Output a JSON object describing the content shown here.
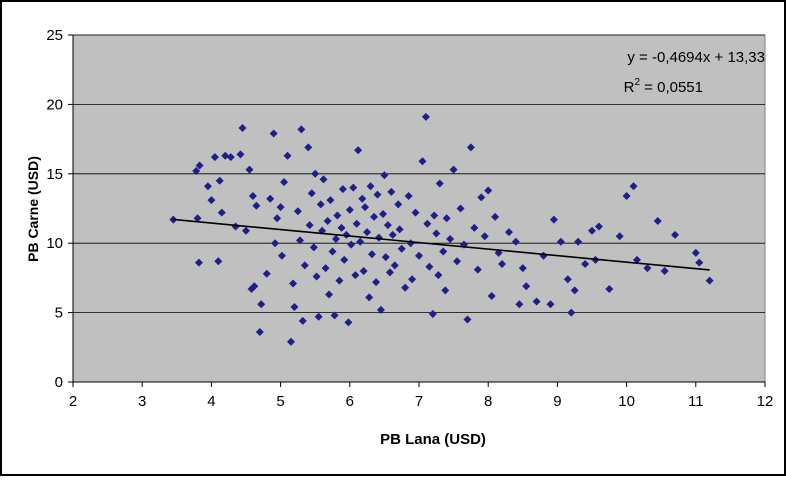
{
  "chart_data": {
    "type": "scatter",
    "xlabel": "PB Lana (USD)",
    "ylabel": "PB Carne (USD)",
    "xlim": [
      2,
      12
    ],
    "ylim": [
      0,
      25
    ],
    "x_ticks": [
      "2",
      "3",
      "4",
      "5",
      "6",
      "7",
      "8",
      "9",
      "10",
      "11",
      "12"
    ],
    "y_ticks": [
      "0",
      "5",
      "10",
      "15",
      "20",
      "25"
    ],
    "grid": "horizontal",
    "background": "#c0c0c0",
    "marker_color": "#1f1f8a",
    "trendline": {
      "equation": "y = -0,4694x + 13,33",
      "r2_prefix": "R",
      "r2_sup": "2",
      "r2_suffix": " = 0,0551",
      "slope": -0.4694,
      "intercept": 13.33,
      "x_range": [
        3.45,
        11.2
      ],
      "color": "#000000"
    },
    "series": [
      {
        "points": [
          [
            3.45,
            11.7
          ],
          [
            3.8,
            11.8
          ],
          [
            3.78,
            15.2
          ],
          [
            3.83,
            15.6
          ],
          [
            3.82,
            8.6
          ],
          [
            4.0,
            13.1
          ],
          [
            3.95,
            14.1
          ],
          [
            4.05,
            16.2
          ],
          [
            4.12,
            14.5
          ],
          [
            4.2,
            16.3
          ],
          [
            4.28,
            16.2
          ],
          [
            4.15,
            12.2
          ],
          [
            4.1,
            8.7
          ],
          [
            4.35,
            11.2
          ],
          [
            4.42,
            16.4
          ],
          [
            4.45,
            18.3
          ],
          [
            4.55,
            15.3
          ],
          [
            4.6,
            13.4
          ],
          [
            4.65,
            12.7
          ],
          [
            4.5,
            10.9
          ],
          [
            4.58,
            6.7
          ],
          [
            4.62,
            6.9
          ],
          [
            4.7,
            3.6
          ],
          [
            4.72,
            5.6
          ],
          [
            4.8,
            7.8
          ],
          [
            4.85,
            13.2
          ],
          [
            4.9,
            17.9
          ],
          [
            4.92,
            10.0
          ],
          [
            4.95,
            11.8
          ],
          [
            5.0,
            12.6
          ],
          [
            5.05,
            14.4
          ],
          [
            5.02,
            9.1
          ],
          [
            5.1,
            16.3
          ],
          [
            5.15,
            2.9
          ],
          [
            5.18,
            7.1
          ],
          [
            5.2,
            5.4
          ],
          [
            5.25,
            12.3
          ],
          [
            5.28,
            10.2
          ],
          [
            5.3,
            18.2
          ],
          [
            5.32,
            4.4
          ],
          [
            5.35,
            8.4
          ],
          [
            5.4,
            16.9
          ],
          [
            5.42,
            11.3
          ],
          [
            5.45,
            13.6
          ],
          [
            5.48,
            9.7
          ],
          [
            5.5,
            15.0
          ],
          [
            5.52,
            7.6
          ],
          [
            5.55,
            4.7
          ],
          [
            5.58,
            12.8
          ],
          [
            5.6,
            10.9
          ],
          [
            5.62,
            14.6
          ],
          [
            5.65,
            8.2
          ],
          [
            5.68,
            11.6
          ],
          [
            5.7,
            6.3
          ],
          [
            5.72,
            13.1
          ],
          [
            5.75,
            9.4
          ],
          [
            5.78,
            4.8
          ],
          [
            5.8,
            10.3
          ],
          [
            5.82,
            12.0
          ],
          [
            5.85,
            7.3
          ],
          [
            5.88,
            11.1
          ],
          [
            5.9,
            13.9
          ],
          [
            5.92,
            8.8
          ],
          [
            5.95,
            10.6
          ],
          [
            5.98,
            4.3
          ],
          [
            6.0,
            12.4
          ],
          [
            6.02,
            9.9
          ],
          [
            6.05,
            14.0
          ],
          [
            6.08,
            7.7
          ],
          [
            6.1,
            11.4
          ],
          [
            6.12,
            16.7
          ],
          [
            6.15,
            10.1
          ],
          [
            6.18,
            13.2
          ],
          [
            6.2,
            8.0
          ],
          [
            6.22,
            12.6
          ],
          [
            6.25,
            10.8
          ],
          [
            6.28,
            6.1
          ],
          [
            6.3,
            14.1
          ],
          [
            6.32,
            9.2
          ],
          [
            6.35,
            11.9
          ],
          [
            6.38,
            7.2
          ],
          [
            6.4,
            13.5
          ],
          [
            6.42,
            10.4
          ],
          [
            6.45,
            5.2
          ],
          [
            6.48,
            12.1
          ],
          [
            6.5,
            14.9
          ],
          [
            6.52,
            9.0
          ],
          [
            6.55,
            11.3
          ],
          [
            6.58,
            7.9
          ],
          [
            6.6,
            13.7
          ],
          [
            6.62,
            10.6
          ],
          [
            6.65,
            8.4
          ],
          [
            6.7,
            12.8
          ],
          [
            6.72,
            11.0
          ],
          [
            6.75,
            9.6
          ],
          [
            6.8,
            6.8
          ],
          [
            6.85,
            13.4
          ],
          [
            6.88,
            10.0
          ],
          [
            6.9,
            7.4
          ],
          [
            6.95,
            12.2
          ],
          [
            7.0,
            9.1
          ],
          [
            7.05,
            15.9
          ],
          [
            7.1,
            19.1
          ],
          [
            7.12,
            11.4
          ],
          [
            7.15,
            8.3
          ],
          [
            7.2,
            4.9
          ],
          [
            7.22,
            12.0
          ],
          [
            7.25,
            10.7
          ],
          [
            7.28,
            7.7
          ],
          [
            7.3,
            14.3
          ],
          [
            7.35,
            9.4
          ],
          [
            7.38,
            6.6
          ],
          [
            7.4,
            11.8
          ],
          [
            7.45,
            10.3
          ],
          [
            7.5,
            15.3
          ],
          [
            7.55,
            8.7
          ],
          [
            7.6,
            12.5
          ],
          [
            7.65,
            9.9
          ],
          [
            7.7,
            4.5
          ],
          [
            7.75,
            16.9
          ],
          [
            7.8,
            11.1
          ],
          [
            7.85,
            8.1
          ],
          [
            7.9,
            13.3
          ],
          [
            7.95,
            10.5
          ],
          [
            8.0,
            13.8
          ],
          [
            8.05,
            6.2
          ],
          [
            8.1,
            11.9
          ],
          [
            8.15,
            9.3
          ],
          [
            8.2,
            8.5
          ],
          [
            8.3,
            10.8
          ],
          [
            8.4,
            10.1
          ],
          [
            8.45,
            5.6
          ],
          [
            8.5,
            8.2
          ],
          [
            8.55,
            6.9
          ],
          [
            8.7,
            5.8
          ],
          [
            8.8,
            9.1
          ],
          [
            8.9,
            5.6
          ],
          [
            8.95,
            11.7
          ],
          [
            9.05,
            10.1
          ],
          [
            9.15,
            7.4
          ],
          [
            9.2,
            5.0
          ],
          [
            9.25,
            6.6
          ],
          [
            9.3,
            10.1
          ],
          [
            9.4,
            8.5
          ],
          [
            9.5,
            10.9
          ],
          [
            9.55,
            8.8
          ],
          [
            9.6,
            11.2
          ],
          [
            9.75,
            6.7
          ],
          [
            9.9,
            10.5
          ],
          [
            10.0,
            13.4
          ],
          [
            10.1,
            14.1
          ],
          [
            10.15,
            8.8
          ],
          [
            10.3,
            8.2
          ],
          [
            10.45,
            11.6
          ],
          [
            10.55,
            8.0
          ],
          [
            10.7,
            10.6
          ],
          [
            11.0,
            9.3
          ],
          [
            11.05,
            8.6
          ],
          [
            11.2,
            7.3
          ]
        ]
      }
    ]
  }
}
